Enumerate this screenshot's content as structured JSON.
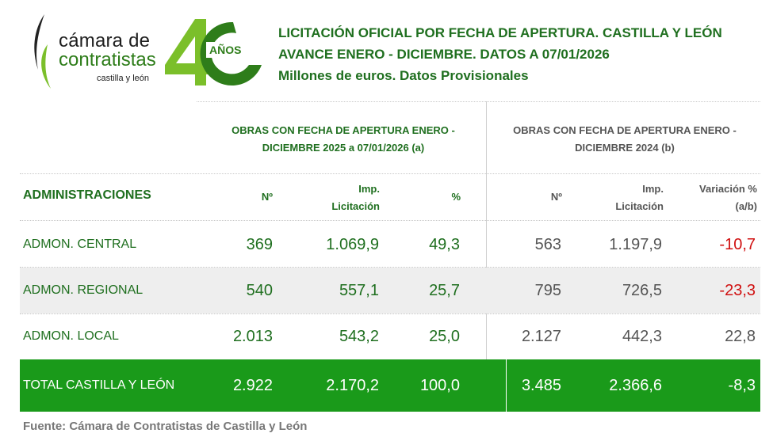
{
  "logo": {
    "camara": "cámara de",
    "contratistas": "contratistas",
    "region": "castilla y león",
    "anniversary_number": "40",
    "anniversary_label": "AÑOS"
  },
  "header": {
    "title_line1": "LICITACIÓN OFICIAL POR FECHA DE APERTURA. CASTILLA Y LEÓN",
    "title_line2": "AVANCE ENERO - DICIEMBRE. DATOS A 07/01/2026",
    "title_line3": "Millones de euros. Datos Provisionales"
  },
  "table": {
    "group_a": {
      "line1": "OBRAS CON FECHA DE APERTURA ENERO -",
      "line2": "DICIEMBRE 2025 a 07/01/2026 (a)"
    },
    "group_b": {
      "line1": "OBRAS CON FECHA DE APERTURA ENERO -",
      "line2": "DICIEMBRE 2024 (b)"
    },
    "columns": {
      "admin": "ADMINISTRACIONES",
      "num_a": "Nº",
      "imp_a_1": "Imp.",
      "imp_a_2": "Licitación",
      "pct_a": "%",
      "num_b": "Nº",
      "imp_b_1": "Imp.",
      "imp_b_2": "Licitación",
      "var_1": "Variación %",
      "var_2": "(a/b)"
    },
    "rows": [
      {
        "name": "ADMON. CENTRAL",
        "num_a": "369",
        "imp_a": "1.069,9",
        "pct_a": "49,3",
        "num_b": "563",
        "imp_b": "1.197,9",
        "var": "-10,7"
      },
      {
        "name": "ADMON. REGIONAL",
        "num_a": "540",
        "imp_a": "557,1",
        "pct_a": "25,7",
        "num_b": "795",
        "imp_b": "726,5",
        "var": "-23,3"
      },
      {
        "name": "ADMON. LOCAL",
        "num_a": "2.013",
        "imp_a": "543,2",
        "pct_a": "25,0",
        "num_b": "2.127",
        "imp_b": "442,3",
        "var": "22,8"
      }
    ],
    "total": {
      "name": "TOTAL CASTILLA Y LEÓN",
      "num_a": "2.922",
      "imp_a": "2.170,2",
      "pct_a": "100,0",
      "num_b": "3.485",
      "imp_b": "2.366,6",
      "var": "-8,3"
    }
  },
  "footer": {
    "source": "Fuente: Cámara de Contratistas de Castilla y León"
  },
  "colors": {
    "green_text": "#1f6f1f",
    "total_bg": "#1a9a1a",
    "negative": "#d01010",
    "grey_text": "#555555",
    "alt_row": "#eeeeee"
  }
}
